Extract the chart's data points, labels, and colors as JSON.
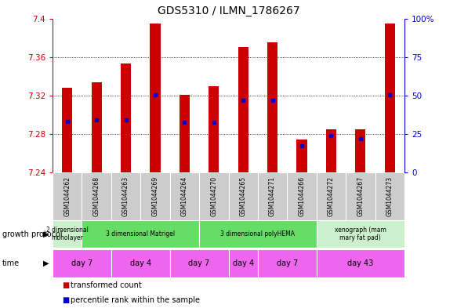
{
  "title": "GDS5310 / ILMN_1786267",
  "samples": [
    "GSM1044262",
    "GSM1044268",
    "GSM1044263",
    "GSM1044269",
    "GSM1044264",
    "GSM1044270",
    "GSM1044265",
    "GSM1044271",
    "GSM1044266",
    "GSM1044272",
    "GSM1044267",
    "GSM1044273"
  ],
  "bar_tops": [
    7.328,
    7.334,
    7.353,
    7.395,
    7.321,
    7.33,
    7.37,
    7.375,
    7.274,
    7.285,
    7.285,
    7.395
  ],
  "bar_bottom": 7.24,
  "blue_values": [
    7.293,
    7.295,
    7.295,
    7.321,
    7.292,
    7.292,
    7.315,
    7.315,
    7.268,
    7.278,
    7.275,
    7.321
  ],
  "blue_marker_size": 3,
  "ylim_left": [
    7.24,
    7.4
  ],
  "ylim_right": [
    0,
    100
  ],
  "yticks_left": [
    7.24,
    7.28,
    7.32,
    7.36,
    7.4
  ],
  "yticks_right": [
    0,
    25,
    50,
    75,
    100
  ],
  "ytick_labels_left": [
    "7.24",
    "7.28",
    "7.32",
    "7.36",
    "7.4"
  ],
  "ytick_labels_right": [
    "0",
    "25",
    "50",
    "75",
    "100%"
  ],
  "bar_color": "#cc0000",
  "blue_color": "#0000cc",
  "growth_protocol_labels": [
    {
      "text": "2 dimensional\nmonolayer",
      "start": 0,
      "end": 1,
      "color": "#ccf0cc"
    },
    {
      "text": "3 dimensional Matrigel",
      "start": 1,
      "end": 5,
      "color": "#66dd66"
    },
    {
      "text": "3 dimensional polyHEMA",
      "start": 5,
      "end": 9,
      "color": "#66dd66"
    },
    {
      "text": "xenograph (mam\nmary fat pad)",
      "start": 9,
      "end": 12,
      "color": "#ccf0cc"
    }
  ],
  "time_labels": [
    {
      "text": "day 7",
      "start": 0,
      "end": 2,
      "color": "#ee66ee"
    },
    {
      "text": "day 4",
      "start": 2,
      "end": 4,
      "color": "#ee66ee"
    },
    {
      "text": "day 7",
      "start": 4,
      "end": 6,
      "color": "#ee66ee"
    },
    {
      "text": "day 4",
      "start": 6,
      "end": 7,
      "color": "#ee66ee"
    },
    {
      "text": "day 7",
      "start": 7,
      "end": 9,
      "color": "#ee66ee"
    },
    {
      "text": "day 43",
      "start": 9,
      "end": 12,
      "color": "#ee66ee"
    }
  ],
  "bar_width": 0.35,
  "left_ylabel_color": "#cc0000",
  "right_ylabel_color": "#0000cc",
  "sample_label_bg": "#cccccc",
  "growth_protocol_row_label": "growth protocol",
  "time_row_label": "time",
  "legend_items": [
    {
      "color": "#cc0000",
      "label": "transformed count"
    },
    {
      "color": "#0000cc",
      "label": "percentile rank within the sample"
    }
  ]
}
